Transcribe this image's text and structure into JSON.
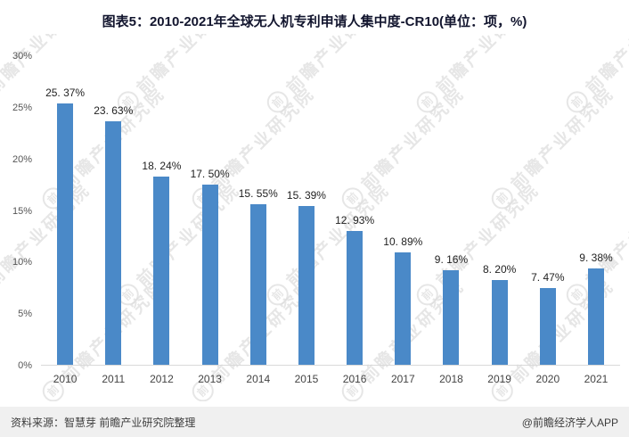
{
  "title": "图表5：2010-2021年全球无人机专利申请人集中度-CR10(单位：项，%)",
  "chart_data": {
    "type": "bar",
    "title": "图表5：2010-2021年全球无人机专利申请人集中度-CR10(单位：项，%)",
    "categories": [
      "2010",
      "2011",
      "2012",
      "2013",
      "2014",
      "2015",
      "2016",
      "2017",
      "2018",
      "2019",
      "2020",
      "2021"
    ],
    "values": [
      25.37,
      23.63,
      18.24,
      17.5,
      15.55,
      15.39,
      12.93,
      10.89,
      9.16,
      8.2,
      7.47,
      9.38
    ],
    "value_labels": [
      "25. 37%",
      "23. 63%",
      "18. 24%",
      "17. 50%",
      "15. 55%",
      "15. 39%",
      "12. 93%",
      "10. 89%",
      "9. 16%",
      "8. 20%",
      "7. 47%",
      "9. 38%"
    ],
    "xlabel": "",
    "ylabel": "",
    "ylim": [
      0,
      30
    ],
    "yticks": [
      "0%",
      "5%",
      "10%",
      "15%",
      "20%",
      "25%",
      "30%"
    ],
    "grid": false,
    "legend": "none",
    "bar_color": "#4a89c8"
  },
  "watermark": {
    "text": "前瞻产业研究院",
    "circle_glyph": "前"
  },
  "footer": {
    "source": "资料来源：智慧芽 前瞻产业研究院整理",
    "brand": "@前瞻经济学人APP"
  }
}
